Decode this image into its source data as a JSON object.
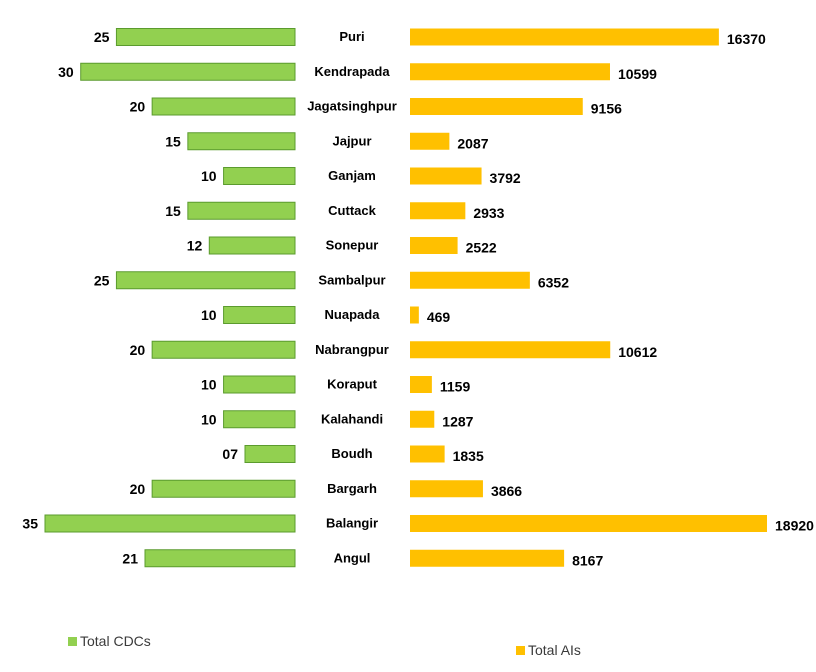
{
  "chart_data": {
    "type": "bar",
    "orientation": "horizontal-butterfly",
    "categories": [
      "Puri",
      "Kendrapada",
      "Jagatsinghpur",
      "Jajpur",
      "Ganjam",
      "Cuttack",
      "Sonepur",
      "Sambalpur",
      "Nuapada",
      "Nabrangpur",
      "Koraput",
      "Kalahandi",
      "Boudh",
      "Bargarh",
      "Balangir",
      "Angul"
    ],
    "series": [
      {
        "name": "Total CDCs",
        "color": "#92D050",
        "values": [
          25,
          30,
          20,
          15,
          10,
          15,
          12,
          25,
          10,
          20,
          10,
          10,
          7,
          20,
          35,
          21
        ],
        "labels": [
          "25",
          "30",
          "20",
          "15",
          "10",
          "15",
          "12",
          "25",
          "10",
          "20",
          "10",
          "10",
          "07",
          "20",
          "35",
          "21"
        ]
      },
      {
        "name": "Total AIs",
        "color": "#FFC000",
        "values": [
          16370,
          10599,
          9156,
          2087,
          3792,
          2933,
          2522,
          6352,
          469,
          10612,
          1159,
          1287,
          1835,
          3866,
          18920,
          8167
        ],
        "labels": [
          "16370",
          "10599",
          "9156",
          "2087",
          "3792",
          "2933",
          "2522",
          "6352",
          "469",
          "10612",
          "1159",
          "1287",
          "1835",
          "3866",
          "18920",
          "8167"
        ]
      }
    ],
    "title": "",
    "xlabel": "",
    "ylabel": "",
    "legend_position": "bottom",
    "grid": false
  }
}
